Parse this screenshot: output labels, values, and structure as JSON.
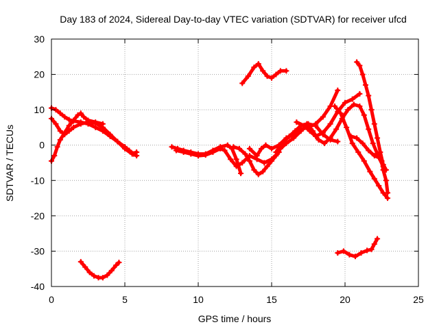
{
  "chart_data": {
    "type": "scatter",
    "title": "Day 183 of 2024, Sidereal Day-to-day VTEC variation (SDTVAR) for receiver ufcd",
    "xlabel": "GPS time / hours",
    "ylabel": "SDTVAR / TECUs",
    "xlim": [
      0,
      25
    ],
    "ylim": [
      -40,
      30
    ],
    "xticks": [
      0,
      5,
      10,
      15,
      20,
      25
    ],
    "yticks": [
      -40,
      -30,
      -20,
      -10,
      0,
      10,
      20,
      30
    ],
    "grid": true,
    "marker_color": "#ff0000",
    "grid_color": "#a0a0a0",
    "series": [
      {
        "name": "s1",
        "points": [
          [
            0.0,
            10.5
          ],
          [
            0.3,
            10.0
          ],
          [
            0.6,
            9.0
          ],
          [
            0.9,
            8.0
          ],
          [
            1.2,
            7.2
          ],
          [
            1.5,
            6.8
          ],
          [
            2.0,
            6.5
          ],
          [
            2.5,
            6.0
          ],
          [
            3.0,
            5.0
          ],
          [
            3.5,
            4.0
          ],
          [
            4.0,
            2.5
          ],
          [
            4.5,
            1.0
          ],
          [
            5.0,
            -0.5
          ],
          [
            5.3,
            -1.5
          ],
          [
            5.6,
            -2.5
          ],
          [
            5.8,
            -3.0
          ]
        ]
      },
      {
        "name": "s2",
        "points": [
          [
            0.0,
            7.5
          ],
          [
            0.3,
            6.0
          ],
          [
            0.6,
            4.0
          ],
          [
            0.9,
            3.0
          ],
          [
            1.2,
            4.0
          ],
          [
            1.5,
            5.0
          ],
          [
            2.0,
            6.0
          ],
          [
            2.5,
            6.5
          ],
          [
            3.0,
            6.2
          ],
          [
            3.5,
            5.0
          ],
          [
            4.0,
            3.0
          ],
          [
            4.5,
            1.0
          ],
          [
            5.0,
            -1.0
          ],
          [
            5.5,
            -2.5
          ],
          [
            5.8,
            -2.0
          ]
        ]
      },
      {
        "name": "s3",
        "points": [
          [
            0.0,
            -4.5
          ],
          [
            0.2,
            -3.0
          ],
          [
            0.4,
            -0.5
          ],
          [
            0.6,
            1.5
          ],
          [
            0.9,
            3.5
          ],
          [
            1.2,
            5.5
          ],
          [
            1.5,
            7.0
          ],
          [
            1.8,
            8.5
          ],
          [
            2.0,
            9.0
          ],
          [
            2.2,
            8.0
          ],
          [
            2.5,
            7.0
          ],
          [
            3.0,
            6.5
          ],
          [
            3.5,
            6.0
          ]
        ]
      },
      {
        "name": "s4",
        "points": [
          [
            2.0,
            -33.0
          ],
          [
            2.3,
            -34.5
          ],
          [
            2.6,
            -36.0
          ],
          [
            2.9,
            -37.0
          ],
          [
            3.2,
            -37.5
          ],
          [
            3.5,
            -37.5
          ],
          [
            3.8,
            -36.8
          ],
          [
            4.1,
            -35.5
          ],
          [
            4.4,
            -34.0
          ],
          [
            4.6,
            -33.2
          ]
        ]
      },
      {
        "name": "s5",
        "points": [
          [
            8.2,
            -0.5
          ],
          [
            8.6,
            -1.0
          ],
          [
            9.0,
            -1.5
          ],
          [
            9.5,
            -2.0
          ],
          [
            10.0,
            -2.5
          ],
          [
            10.5,
            -2.5
          ],
          [
            11.0,
            -1.5
          ],
          [
            11.5,
            -0.5
          ],
          [
            12.0,
            0.0
          ],
          [
            12.3,
            -1.0
          ],
          [
            12.6,
            -4.0
          ],
          [
            12.9,
            -8.0
          ]
        ]
      },
      {
        "name": "s6",
        "points": [
          [
            8.5,
            -1.5
          ],
          [
            9.0,
            -2.0
          ],
          [
            9.5,
            -2.5
          ],
          [
            10.0,
            -3.0
          ],
          [
            10.5,
            -2.8
          ],
          [
            11.0,
            -2.0
          ],
          [
            11.5,
            -1.0
          ],
          [
            11.8,
            -1.5
          ],
          [
            12.2,
            -4.0
          ],
          [
            12.6,
            -6.0
          ],
          [
            13.0,
            -5.0
          ],
          [
            13.5,
            -3.0
          ],
          [
            14.0,
            -4.0
          ],
          [
            14.5,
            -5.0
          ],
          [
            15.0,
            -4.0
          ],
          [
            15.5,
            -2.0
          ]
        ]
      },
      {
        "name": "s7",
        "points": [
          [
            12.4,
            -0.5
          ],
          [
            12.8,
            -1.0
          ],
          [
            13.2,
            -2.5
          ],
          [
            13.5,
            -4.5
          ],
          [
            13.8,
            -7.0
          ],
          [
            14.1,
            -8.3
          ],
          [
            14.4,
            -7.5
          ],
          [
            14.7,
            -6.0
          ],
          [
            15.0,
            -4.5
          ],
          [
            15.3,
            -3.0
          ],
          [
            15.6,
            -1.0
          ],
          [
            16.0,
            0.5
          ],
          [
            16.5,
            2.0
          ],
          [
            17.0,
            4.0
          ],
          [
            17.5,
            6.0
          ],
          [
            18.0,
            5.5
          ],
          [
            18.5,
            3.0
          ],
          [
            19.0,
            1.5
          ],
          [
            19.5,
            1.0
          ]
        ]
      },
      {
        "name": "s8",
        "points": [
          [
            13.5,
            -1.0
          ],
          [
            14.0,
            -3.0
          ],
          [
            14.3,
            -1.0
          ],
          [
            14.6,
            0.0
          ],
          [
            15.0,
            -1.0
          ],
          [
            15.5,
            0.0
          ],
          [
            16.0,
            2.0
          ],
          [
            16.5,
            3.0
          ],
          [
            17.0,
            4.5
          ],
          [
            17.5,
            5.0
          ],
          [
            18.0,
            6.0
          ],
          [
            18.5,
            8.0
          ],
          [
            19.0,
            11.0
          ],
          [
            19.5,
            15.5
          ]
        ]
      },
      {
        "name": "s9",
        "points": [
          [
            15.3,
            -2.0
          ],
          [
            15.7,
            0.5
          ],
          [
            16.2,
            2.5
          ],
          [
            16.6,
            4.0
          ],
          [
            17.0,
            5.5
          ],
          [
            17.4,
            6.0
          ],
          [
            17.8,
            4.0
          ],
          [
            18.2,
            1.5
          ],
          [
            18.6,
            0.5
          ],
          [
            19.0,
            2.0
          ],
          [
            19.4,
            4.5
          ],
          [
            19.8,
            7.5
          ],
          [
            20.2,
            10.0
          ],
          [
            20.6,
            11.5
          ],
          [
            21.0,
            11.0
          ],
          [
            21.3,
            8.5
          ],
          [
            21.6,
            4.5
          ],
          [
            21.9,
            0.5
          ],
          [
            22.2,
            -2.5
          ],
          [
            22.6,
            -6.0
          ]
        ]
      },
      {
        "name": "s10",
        "points": [
          [
            16.7,
            6.5
          ],
          [
            17.2,
            5.5
          ],
          [
            17.6,
            4.0
          ],
          [
            18.0,
            2.5
          ],
          [
            18.5,
            3.5
          ],
          [
            19.0,
            6.0
          ],
          [
            19.5,
            9.5
          ],
          [
            20.0,
            12.0
          ],
          [
            20.5,
            13.0
          ],
          [
            21.0,
            14.5
          ]
        ]
      },
      {
        "name": "s11",
        "points": [
          [
            13.0,
            17.5
          ],
          [
            13.4,
            19.5
          ],
          [
            13.8,
            22.0
          ],
          [
            14.1,
            23.0
          ],
          [
            14.4,
            21.0
          ],
          [
            14.7,
            19.5
          ],
          [
            15.0,
            19.0
          ],
          [
            15.3,
            20.0
          ],
          [
            15.6,
            21.0
          ],
          [
            16.0,
            21.0
          ]
        ]
      },
      {
        "name": "s12",
        "points": [
          [
            20.8,
            23.5
          ],
          [
            21.0,
            22.5
          ],
          [
            21.2,
            20.0
          ],
          [
            21.4,
            17.0
          ],
          [
            21.6,
            14.0
          ],
          [
            21.8,
            10.0
          ],
          [
            22.0,
            6.0
          ],
          [
            22.2,
            2.0
          ],
          [
            22.4,
            -2.0
          ],
          [
            22.6,
            -5.5
          ],
          [
            22.8,
            -7.0
          ]
        ]
      },
      {
        "name": "s13",
        "points": [
          [
            19.3,
            11.0
          ],
          [
            19.7,
            9.0
          ],
          [
            20.1,
            5.0
          ],
          [
            20.5,
            0.5
          ],
          [
            20.9,
            -2.0
          ],
          [
            21.3,
            -4.5
          ],
          [
            21.7,
            -7.5
          ],
          [
            22.0,
            -9.5
          ],
          [
            22.3,
            -11.5
          ],
          [
            22.6,
            -13.5
          ],
          [
            22.9,
            -15.0
          ]
        ]
      },
      {
        "name": "s14",
        "points": [
          [
            20.4,
            2.5
          ],
          [
            20.8,
            2.0
          ],
          [
            21.2,
            0.5
          ],
          [
            21.6,
            -1.5
          ],
          [
            22.0,
            -3.0
          ],
          [
            22.3,
            -3.5
          ],
          [
            22.5,
            -4.5
          ],
          [
            22.6,
            -7.0
          ],
          [
            22.8,
            -10.0
          ],
          [
            22.9,
            -13.5
          ]
        ]
      },
      {
        "name": "s15",
        "points": [
          [
            19.5,
            -30.5
          ],
          [
            19.9,
            -30.0
          ],
          [
            20.3,
            -31.0
          ],
          [
            20.7,
            -31.5
          ],
          [
            21.1,
            -30.5
          ],
          [
            21.5,
            -29.8
          ],
          [
            21.8,
            -29.5
          ],
          [
            22.0,
            -28.0
          ],
          [
            22.2,
            -26.5
          ]
        ]
      }
    ]
  }
}
